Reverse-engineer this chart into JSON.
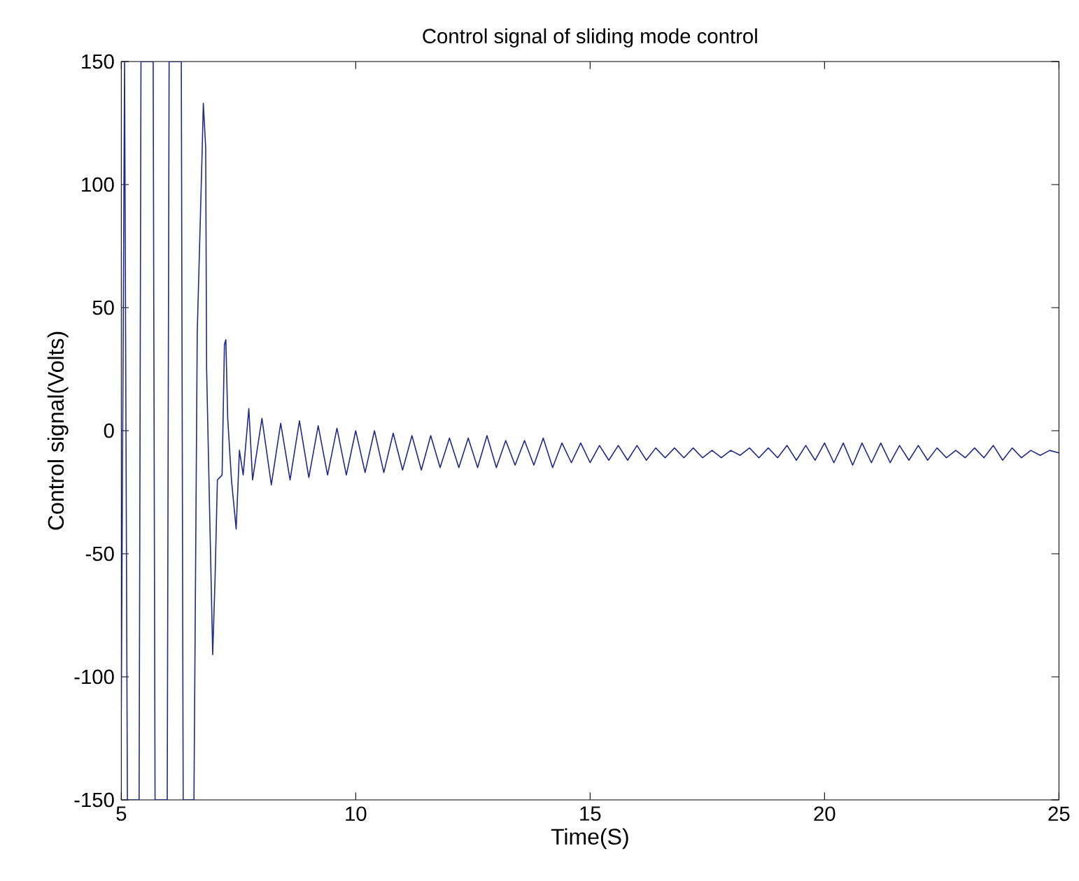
{
  "chart_data": {
    "type": "line",
    "title": "Control signal of sliding mode control",
    "xlabel": "Time(S)",
    "ylabel": "Control signal(Volts)",
    "xlim": [
      5,
      25
    ],
    "ylim": [
      -150,
      150
    ],
    "xticks": [
      5,
      10,
      15,
      20,
      25
    ],
    "yticks": [
      -150,
      -100,
      -50,
      0,
      50,
      100,
      150
    ],
    "grid": false,
    "marker": "none",
    "line_style": "solid",
    "series": [
      {
        "color": "#1f2a8f",
        "x": [
          5.0,
          5.07,
          5.13,
          5.38,
          5.42,
          5.68,
          5.72,
          5.98,
          6.02,
          6.28,
          6.32,
          6.55,
          6.62,
          6.72,
          6.75,
          6.8,
          6.82,
          6.87,
          6.95,
          7.0,
          7.05,
          7.15,
          7.2,
          7.23,
          7.27,
          7.35,
          7.45,
          7.52,
          7.6,
          7.72,
          7.8,
          8.0,
          8.2,
          8.4,
          8.6,
          8.8,
          9.0,
          9.2,
          9.4,
          9.6,
          9.8,
          10.0,
          10.2,
          10.4,
          10.6,
          10.8,
          11.0,
          11.2,
          11.4,
          11.6,
          11.8,
          12.0,
          12.2,
          12.4,
          12.6,
          12.8,
          13.0,
          13.2,
          13.4,
          13.6,
          13.8,
          14.0,
          14.2,
          14.4,
          14.6,
          14.8,
          15.0,
          15.2,
          15.4,
          15.6,
          15.8,
          16.0,
          16.2,
          16.4,
          16.6,
          16.8,
          17.0,
          17.2,
          17.4,
          17.6,
          17.8,
          18.0,
          18.2,
          18.4,
          18.6,
          18.8,
          19.0,
          19.2,
          19.4,
          19.6,
          19.8,
          20.0,
          20.2,
          20.4,
          20.6,
          20.8,
          21.0,
          21.2,
          21.4,
          21.6,
          21.8,
          22.0,
          22.2,
          22.4,
          22.6,
          22.8,
          23.0,
          23.2,
          23.4,
          23.6,
          23.8,
          24.0,
          24.2,
          24.4,
          24.6,
          24.8,
          25.0
        ],
        "values": [
          -114,
          150,
          -150,
          -150,
          150,
          150,
          -150,
          -150,
          150,
          150,
          -150,
          -150,
          40,
          110,
          133,
          115,
          25,
          -20,
          -91,
          -60,
          -20,
          -18,
          35,
          37,
          5,
          -20,
          -40,
          -8,
          -18,
          9,
          -20,
          5,
          -22,
          3,
          -20,
          4,
          -19,
          2,
          -18,
          1,
          -18,
          0,
          -17,
          0,
          -17,
          -1,
          -16,
          -2,
          -16,
          -2,
          -15,
          -3,
          -15,
          -3,
          -15,
          -2,
          -15,
          -4,
          -14,
          -4,
          -14,
          -3,
          -15,
          -5,
          -13,
          -5,
          -13,
          -6,
          -12,
          -6,
          -12,
          -6,
          -12,
          -7,
          -11,
          -7,
          -11,
          -7,
          -11,
          -8,
          -11,
          -8,
          -10,
          -7,
          -11,
          -7,
          -11,
          -6,
          -12,
          -6,
          -12,
          -5,
          -13,
          -5,
          -14,
          -5,
          -13,
          -5,
          -13,
          -6,
          -12,
          -6,
          -12,
          -7,
          -11,
          -8,
          -11,
          -7,
          -11,
          -6,
          -12,
          -7,
          -11,
          -8,
          -10,
          -8,
          -9
        ]
      }
    ]
  }
}
